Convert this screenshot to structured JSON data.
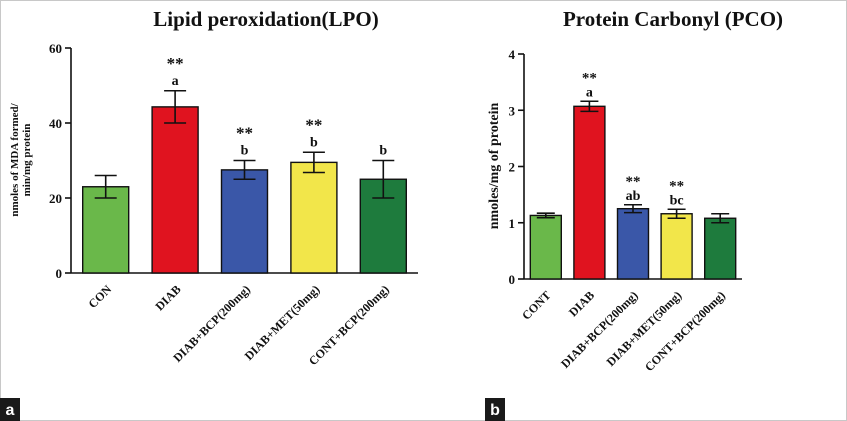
{
  "colors": {
    "CON": "#6ab84a",
    "DIAB": "#e0131f",
    "DIAB+BCP": "#3a57a8",
    "DIAB+MET": "#f2e64a",
    "CONT+BCP": "#1e7b3d",
    "panel_tag_bg": "#1a1a1a"
  },
  "chart_data": [
    {
      "type": "bar",
      "panel": "a",
      "title": "Lipid peroxidation(LPO)",
      "ylabel_lines": [
        "nmoles of MDA formed/",
        "min/mg protein"
      ],
      "xlabel": "",
      "ylim": [
        0,
        60
      ],
      "yticks": [
        0,
        20,
        40,
        60
      ],
      "categories": [
        "CON",
        "DIAB",
        "DIAB+BCP(200mg)",
        "DIAB+MET(50mg)",
        "CONT+BCP(200mg)"
      ],
      "values": [
        23,
        44.3,
        27.5,
        29.5,
        25
      ],
      "errors": [
        3,
        4.3,
        2.5,
        2.7,
        5
      ],
      "stars": [
        "",
        "**",
        "**",
        "**",
        ""
      ],
      "letters": [
        "",
        "a",
        "b",
        "b",
        "b"
      ],
      "colors": [
        "#6ab84a",
        "#e0131f",
        "#3a57a8",
        "#f2e64a",
        "#1e7b3d"
      ],
      "grid": false
    },
    {
      "type": "bar",
      "panel": "b",
      "title": "Protein Carbonyl (PCO)",
      "ylabel_lines": [
        "nmoles/mg of protein"
      ],
      "xlabel": "",
      "ylim": [
        0,
        4
      ],
      "yticks": [
        0,
        1,
        2,
        3,
        4
      ],
      "categories": [
        "CONT",
        "DIAB",
        "DIAB+BCP(200mg)",
        "DIAB+MET(50mg)",
        "CONT+BCP(200mg)"
      ],
      "values": [
        1.13,
        3.07,
        1.25,
        1.16,
        1.08
      ],
      "errors": [
        0.04,
        0.09,
        0.07,
        0.08,
        0.08
      ],
      "stars": [
        "",
        "**",
        "**",
        "**",
        ""
      ],
      "letters": [
        "",
        "a",
        "ab",
        "bc",
        ""
      ],
      "colors": [
        "#6ab84a",
        "#e0131f",
        "#3a57a8",
        "#f2e64a",
        "#1e7b3d"
      ],
      "grid": false
    }
  ]
}
